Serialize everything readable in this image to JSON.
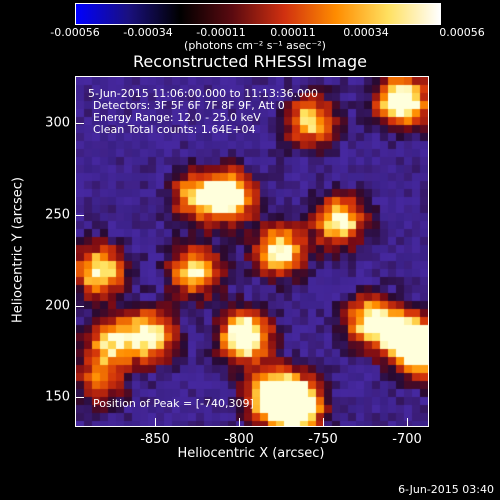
{
  "colorbar": {
    "ticks": [
      "-0.00056",
      "-0.00034",
      "-0.00011",
      "0.00011",
      "0.00034",
      "0.00056"
    ],
    "units": "(photons cm⁻² s⁻¹ asec⁻²)",
    "colors": [
      "#0000ff",
      "#1a1080",
      "#000000",
      "#5a0a10",
      "#d03010",
      "#ff8c00",
      "#ffe060",
      "#ffffff"
    ]
  },
  "plot": {
    "title": "Reconstructed RHESSI Image",
    "annotations": {
      "line1": "5-Jun-2015 11:06:00.000 to 11:13:36.000",
      "line2": "Detectors: 3F 5F 6F 7F 8F 9F, Att 0",
      "line3": "Energy Range: 12.0 - 25.0 keV",
      "line4": "Clean     Total counts: 1.64E+04",
      "peak": "Position of Peak = [-740,309]"
    },
    "xlabel": "Heliocentric X (arcsec)",
    "ylabel": "Heliocentric Y (arcsec)",
    "xticks": [
      "-850",
      "-800",
      "-750",
      "-700"
    ],
    "yticks": [
      "300",
      "250",
      "200",
      "150"
    ]
  },
  "footer": {
    "date": "6-Jun-2015 03:40"
  }
}
